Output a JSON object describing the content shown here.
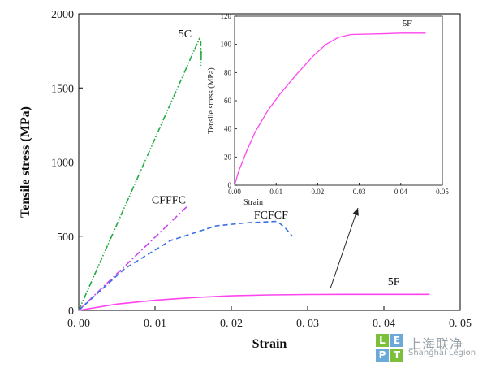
{
  "chart_data": [
    {
      "type": "line",
      "title": "",
      "xlabel": "Strain",
      "ylabel": "Tensile stress (MPa)",
      "xlim": [
        0,
        0.05
      ],
      "ylim": [
        0,
        2000
      ],
      "xticks": [
        "0. 00",
        "0. 01",
        "0. 02",
        "0. 03",
        "0. 04",
        "0. 05"
      ],
      "yticks": [
        "0",
        "500",
        "1000",
        "1500",
        "2000"
      ],
      "series": [
        {
          "name": "5C",
          "color": "#22aa44",
          "dash": "dashdotdot",
          "x": [
            0.0,
            0.0158,
            0.016,
            0.016,
            0.0161,
            0.016
          ],
          "y": [
            0,
            1830,
            1810,
            1720,
            1760,
            1650
          ]
        },
        {
          "name": "CFFFC",
          "color": "#cc44ee",
          "dash": "dashdot",
          "x": [
            0.0,
            0.0143
          ],
          "y": [
            0,
            705
          ]
        },
        {
          "name": "FCFCF",
          "color": "#3a6ee8",
          "dash": "dashed",
          "x": [
            0.0,
            0.006,
            0.012,
            0.018,
            0.022,
            0.026,
            0.027,
            0.028
          ],
          "y": [
            0,
            280,
            470,
            570,
            590,
            600,
            560,
            500
          ]
        },
        {
          "name": "5F",
          "color": "#ff44ee",
          "dash": "solid",
          "x": [
            0.0,
            0.005,
            0.01,
            0.015,
            0.02,
            0.025,
            0.03,
            0.035,
            0.04,
            0.046
          ],
          "y": [
            0,
            42,
            68,
            86,
            98,
            104,
            107,
            108,
            108,
            108
          ]
        }
      ],
      "annotation_arrow": "inset"
    },
    {
      "type": "line",
      "title": "",
      "xlabel": "Strain",
      "ylabel": "Tensile stress (MPa)",
      "xlim": [
        0,
        0.05
      ],
      "ylim": [
        0,
        120
      ],
      "xticks": [
        "0.00",
        "0.01",
        "0.02",
        "0.03",
        "0.04",
        "0.05"
      ],
      "yticks": [
        "0",
        "20",
        "40",
        "60",
        "80",
        "100",
        "120"
      ],
      "series": [
        {
          "name": "5F",
          "color": "#ff44ee",
          "dash": "solid",
          "x": [
            0.0,
            0.001,
            0.003,
            0.005,
            0.008,
            0.011,
            0.015,
            0.019,
            0.022,
            0.025,
            0.028,
            0.035,
            0.04,
            0.046
          ],
          "y": [
            0,
            10,
            25,
            38,
            53,
            65,
            79,
            92,
            100,
            105,
            107,
            107.5,
            108,
            108
          ]
        }
      ]
    }
  ],
  "watermark": {
    "letters": [
      "L",
      "E",
      "P",
      "T"
    ],
    "cn_text": "上海联净",
    "en_text": "Shanghai Legion"
  }
}
